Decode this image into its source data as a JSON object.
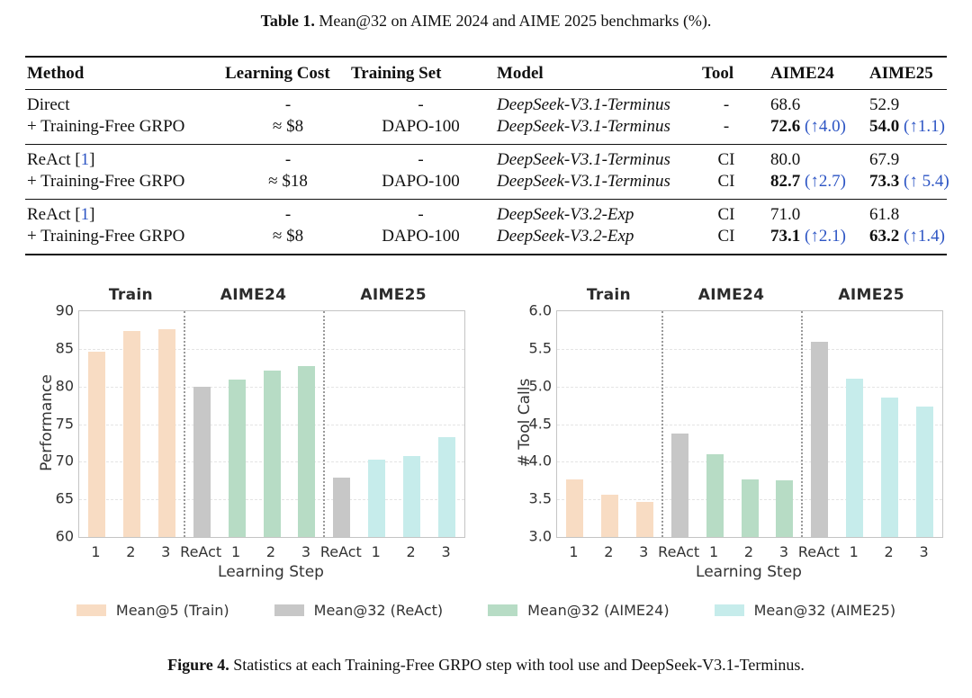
{
  "table": {
    "title_label": "Table 1.",
    "title_rest": " Mean@32 on AIME 2024 and AIME 2025 benchmarks (%).",
    "columns": [
      "Method",
      "Learning Cost",
      "Training Set",
      "Model",
      "Tool",
      "AIME24",
      "AIME25"
    ],
    "groups": [
      {
        "rows": [
          {
            "method": "Direct",
            "cite": "",
            "cost": "-",
            "set": "-",
            "model": "DeepSeek-V3.1-Terminus",
            "tool": "-",
            "aime24": "68.6",
            "aime24_delta": "",
            "aime25": "52.9",
            "aime25_delta": "",
            "bold": false
          },
          {
            "method": "+ Training-Free GRPO",
            "cite": "",
            "cost": "≈ $8",
            "set": "DAPO-100",
            "model": "DeepSeek-V3.1-Terminus",
            "tool": "-",
            "aime24": "72.6",
            "aime24_delta": "(↑4.0)",
            "aime25": "54.0",
            "aime25_delta": "(↑1.1)",
            "bold": true
          }
        ]
      },
      {
        "rows": [
          {
            "method": "ReAct",
            "cite": "1",
            "cost": "-",
            "set": "-",
            "model": "DeepSeek-V3.1-Terminus",
            "tool": "CI",
            "aime24": "80.0",
            "aime24_delta": "",
            "aime25": "67.9",
            "aime25_delta": "",
            "bold": false
          },
          {
            "method": "+ Training-Free GRPO",
            "cite": "",
            "cost": "≈ $18",
            "set": "DAPO-100",
            "model": "DeepSeek-V3.1-Terminus",
            "tool": "CI",
            "aime24": "82.7",
            "aime24_delta": "(↑2.7)",
            "aime25": "73.3",
            "aime25_delta": "(↑ 5.4)",
            "bold": true
          }
        ]
      },
      {
        "rows": [
          {
            "method": "ReAct",
            "cite": "1",
            "cost": "-",
            "set": "-",
            "model": "DeepSeek-V3.2-Exp",
            "tool": "CI",
            "aime24": "71.0",
            "aime24_delta": "",
            "aime25": "61.8",
            "aime25_delta": "",
            "bold": false
          },
          {
            "method": "+ Training-Free GRPO",
            "cite": "",
            "cost": "≈ $8",
            "set": "DAPO-100",
            "model": "DeepSeek-V3.2-Exp",
            "tool": "CI",
            "aime24": "73.1",
            "aime24_delta": "(↑2.1)",
            "aime25": "63.2",
            "aime25_delta": "(↑1.4)",
            "bold": true
          }
        ]
      }
    ]
  },
  "colors": {
    "train": "#f8dcc3",
    "react": "#c7c7c7",
    "aime24": "#b7dcc5",
    "aime25": "#c6eceb",
    "link_blue": "#2d55c4"
  },
  "chart_data": [
    {
      "type": "bar",
      "title_sections": [
        "Train",
        "AIME24",
        "AIME25"
      ],
      "section_centers": [
        1.5,
        5,
        9
      ],
      "section_dividers": [
        3,
        7
      ],
      "xlabel": "Learning Step",
      "ylabel": "Performance",
      "ylim": [
        60,
        90
      ],
      "yticks": [
        60,
        65,
        70,
        75,
        80,
        85,
        90
      ],
      "ytick_labels": [
        "60",
        "65",
        "70",
        "75",
        "80",
        "85",
        "90"
      ],
      "categories": [
        "1",
        "2",
        "3",
        "ReAct",
        "1",
        "2",
        "3",
        "ReAct",
        "1",
        "2",
        "3"
      ],
      "grid": "dashed-horizontal",
      "legend_position": "below-figure",
      "series": [
        {
          "name": "Mean@5 (Train)",
          "color_role": "train",
          "slots": [
            0,
            1,
            2
          ],
          "values": [
            84.6,
            87.4,
            87.6
          ]
        },
        {
          "name": "Mean@32 (ReAct)",
          "color_role": "react",
          "slots": [
            3,
            7
          ],
          "values": [
            80.0,
            67.9
          ]
        },
        {
          "name": "Mean@32 (AIME24)",
          "color_role": "aime24",
          "slots": [
            4,
            5,
            6
          ],
          "values": [
            80.9,
            82.1,
            82.7
          ]
        },
        {
          "name": "Mean@32 (AIME25)",
          "color_role": "aime25",
          "slots": [
            8,
            9,
            10
          ],
          "values": [
            70.3,
            70.8,
            73.3
          ]
        }
      ]
    },
    {
      "type": "bar",
      "title_sections": [
        "Train",
        "AIME24",
        "AIME25"
      ],
      "section_centers": [
        1.5,
        5,
        9
      ],
      "section_dividers": [
        3,
        7
      ],
      "xlabel": "Learning Step",
      "ylabel": "# Tool Calls",
      "ylim": [
        3.0,
        6.0
      ],
      "yticks": [
        3.0,
        3.5,
        4.0,
        4.5,
        5.0,
        5.5,
        6.0
      ],
      "ytick_labels": [
        "3.0",
        "3.5",
        "4.0",
        "4.5",
        "5.0",
        "5.5",
        "6.0"
      ],
      "categories": [
        "1",
        "2",
        "3",
        "ReAct",
        "1",
        "2",
        "3",
        "ReAct",
        "1",
        "2",
        "3"
      ],
      "grid": "dashed-horizontal",
      "legend_position": "below-figure",
      "series": [
        {
          "name": "Mean@5 (Train)",
          "color_role": "train",
          "slots": [
            0,
            1,
            2
          ],
          "values": [
            3.77,
            3.56,
            3.47
          ]
        },
        {
          "name": "Mean@32 (ReAct)",
          "color_role": "react",
          "slots": [
            3,
            7
          ],
          "values": [
            4.37,
            5.59
          ]
        },
        {
          "name": "Mean@32 (AIME24)",
          "color_role": "aime24",
          "slots": [
            4,
            5,
            6
          ],
          "values": [
            4.1,
            3.77,
            3.75
          ]
        },
        {
          "name": "Mean@32 (AIME25)",
          "color_role": "aime25",
          "slots": [
            8,
            9,
            10
          ],
          "values": [
            5.1,
            4.85,
            4.73
          ]
        }
      ]
    }
  ],
  "legend": {
    "items": [
      {
        "label": "Mean@5 (Train)",
        "color_role": "train"
      },
      {
        "label": "Mean@32 (ReAct)",
        "color_role": "react"
      },
      {
        "label": "Mean@32 (AIME24)",
        "color_role": "aime24"
      },
      {
        "label": "Mean@32 (AIME25)",
        "color_role": "aime25"
      }
    ]
  },
  "caption": {
    "label": "Figure 4.",
    "rest": " Statistics at each Training-Free GRPO step with tool use and DeepSeek-V3.1-Terminus."
  }
}
